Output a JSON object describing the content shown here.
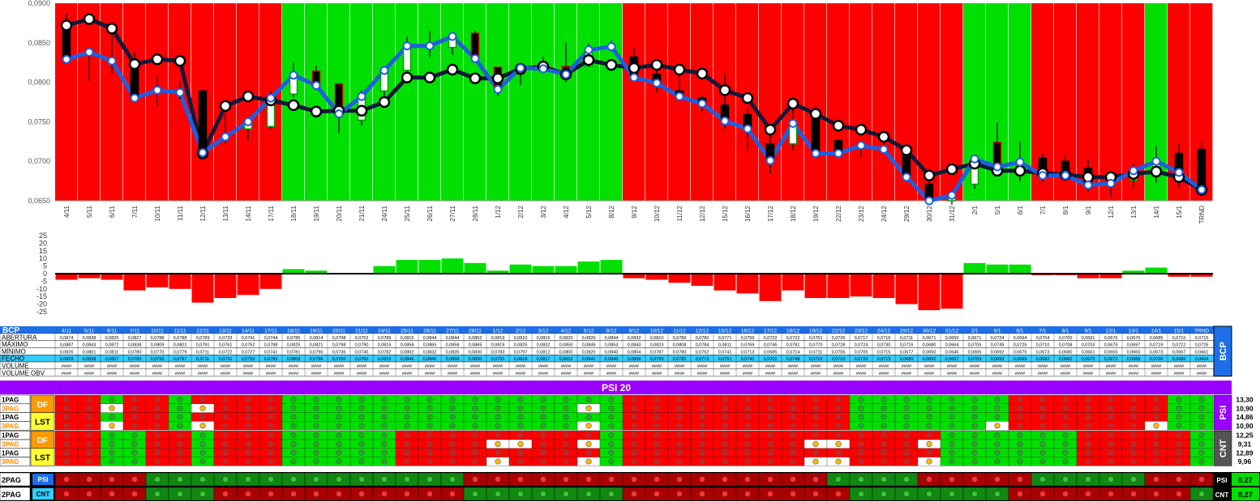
{
  "chart_data": [
    {
      "type": "candlestick",
      "title": "",
      "ylim": [
        0.065,
        0.09
      ],
      "y_ticks": [
        "0,0650",
        "0,0700",
        "0,0750",
        "0,0800",
        "0,0850",
        "0,0900"
      ],
      "categories": [
        "4/11",
        "5/11",
        "6/11",
        "7/11",
        "10/11",
        "11/11",
        "12/11",
        "13/11",
        "14/11",
        "17/11",
        "18/11",
        "19/11",
        "20/11",
        "21/11",
        "24/11",
        "25/11",
        "26/11",
        "27/11",
        "28/11",
        "1/12",
        "2/12",
        "3/12",
        "4/12",
        "5/12",
        "8/12",
        "9/12",
        "10/12",
        "11/12",
        "12/12",
        "15/12",
        "16/12",
        "17/12",
        "18/12",
        "19/12",
        "22/12",
        "23/12",
        "24/12",
        "29/12",
        "30/12",
        "31/12",
        "2/1",
        "5/1",
        "6/1",
        "7/1",
        "8/1",
        "9/1",
        "12/1",
        "13/1",
        "14/1",
        "15/1",
        "TRND"
      ],
      "background": [
        "R",
        "R",
        "R",
        "R",
        "R",
        "R",
        "R",
        "R",
        "R",
        "R",
        "G",
        "G",
        "G",
        "G",
        "G",
        "G",
        "G",
        "G",
        "G",
        "G",
        "G",
        "G",
        "G",
        "G",
        "G",
        "R",
        "R",
        "R",
        "R",
        "R",
        "R",
        "R",
        "R",
        "R",
        "R",
        "R",
        "R",
        "R",
        "R",
        "R",
        "G",
        "G",
        "G",
        "R",
        "R",
        "R",
        "R",
        "R",
        "G",
        "R",
        "R"
      ],
      "open": [
        0.0874,
        0.0838,
        0.0825,
        0.0827,
        0.0788,
        0.0788,
        0.0789,
        0.0733,
        0.0741,
        0.0744,
        0.0785,
        0.0814,
        0.0798,
        0.0752,
        0.0789,
        0.0815,
        0.0844,
        0.0844,
        0.0862,
        0.0819,
        0.081,
        0.0815,
        0.082,
        0.082,
        0.0844,
        0.0832,
        0.081,
        0.0789,
        0.078,
        0.0771,
        0.0759,
        0.0722,
        0.0722,
        0.0761,
        0.0726,
        0.0717,
        0.0716,
        0.0711,
        0.0671,
        0.065,
        0.0671,
        0.0724,
        0.0694,
        0.0704,
        0.07,
        0.0691,
        0.0676,
        0.0676,
        0.0685,
        0.071,
        0.0715
      ],
      "high": [
        0.0887,
        0.0843,
        0.0872,
        0.0838,
        0.0809,
        0.0801,
        0.0791,
        0.0761,
        0.0752,
        0.0788,
        0.0825,
        0.0821,
        0.0798,
        0.079,
        0.0815,
        0.0858,
        0.0865,
        0.0858,
        0.0865,
        0.0819,
        0.0825,
        0.0832,
        0.085,
        0.0849,
        0.0853,
        0.0843,
        0.0823,
        0.0808,
        0.0784,
        0.0811,
        0.0769,
        0.0746,
        0.0781,
        0.077,
        0.0728,
        0.0724,
        0.073,
        0.0716,
        0.068,
        0.0664,
        0.0705,
        0.0749,
        0.0725,
        0.071,
        0.0708,
        0.0703,
        0.0679,
        0.0697,
        0.0719,
        0.0722,
        0.0725
      ],
      "low": [
        0.0826,
        0.0801,
        0.0811,
        0.078,
        0.077,
        0.0779,
        0.0711,
        0.0722,
        0.0727,
        0.0741,
        0.0781,
        0.079,
        0.0736,
        0.0745,
        0.0782,
        0.0802,
        0.0832,
        0.0835,
        0.083,
        0.0783,
        0.0797,
        0.0812,
        0.08,
        0.082,
        0.084,
        0.0804,
        0.0787,
        0.078,
        0.0762,
        0.0741,
        0.0713,
        0.0685,
        0.0714,
        0.0711,
        0.0706,
        0.0705,
        0.0715,
        0.0677,
        0.065,
        0.0645,
        0.0665,
        0.0692,
        0.0675,
        0.0673,
        0.068,
        0.0661,
        0.0655,
        0.0665,
        0.0673,
        0.0667,
        0.0661
      ],
      "close": [
        0.0829,
        0.0838,
        0.0827,
        0.078,
        0.079,
        0.0787,
        0.0711,
        0.0731,
        0.075,
        0.078,
        0.0809,
        0.0796,
        0.076,
        0.0782,
        0.0815,
        0.0846,
        0.0846,
        0.0858,
        0.083,
        0.0791,
        0.0818,
        0.0817,
        0.081,
        0.0841,
        0.0845,
        0.0806,
        0.0799,
        0.0782,
        0.0773,
        0.0751,
        0.0741,
        0.0701,
        0.0748,
        0.071,
        0.071,
        0.072,
        0.0715,
        0.068,
        0.065,
        0.0657,
        0.0703,
        0.0693,
        0.0699,
        0.0682,
        0.0682,
        0.067,
        0.0672,
        0.0688,
        0.07,
        0.0686,
        0.0664
      ],
      "ma": [
        0.0872,
        0.088,
        0.0868,
        0.0823,
        0.0829,
        0.0827,
        0.071,
        0.077,
        0.0782,
        0.0777,
        0.0771,
        0.0763,
        0.0764,
        0.0764,
        0.0775,
        0.0806,
        0.0806,
        0.0816,
        0.0805,
        0.0805,
        0.0817,
        0.082,
        0.081,
        0.0828,
        0.0822,
        0.0818,
        0.0822,
        0.0816,
        0.0811,
        0.079,
        0.078,
        0.074,
        0.0773,
        0.076,
        0.0745,
        0.074,
        0.0731,
        0.0714,
        0.0682,
        0.069,
        0.0697,
        0.0688,
        0.0688,
        0.0685,
        0.0683,
        0.068,
        0.068,
        0.0684,
        0.0687,
        0.068,
        0.0664
      ]
    },
    {
      "type": "bar",
      "title": "",
      "ylim": [
        -25,
        25
      ],
      "y_ticks": [
        25,
        20,
        15,
        10,
        5,
        0,
        -5,
        -10,
        -15,
        -20,
        -25
      ],
      "categories": [
        "4/11",
        "5/11",
        "6/11",
        "7/11",
        "10/11",
        "11/11",
        "12/11",
        "13/11",
        "14/11",
        "17/11",
        "18/11",
        "19/11",
        "20/11",
        "21/11",
        "24/11",
        "25/11",
        "26/11",
        "27/11",
        "28/11",
        "1/12",
        "2/12",
        "3/12",
        "4/12",
        "5/12",
        "8/12",
        "9/12",
        "10/12",
        "11/12",
        "12/12",
        "15/12",
        "16/12",
        "17/12",
        "18/12",
        "19/12",
        "22/12",
        "23/12",
        "24/12",
        "29/12",
        "30/12",
        "31/12",
        "2/1",
        "5/1",
        "6/1",
        "7/1",
        "8/1",
        "9/1",
        "12/1",
        "13/1",
        "14/1",
        "15/1",
        "TRND"
      ],
      "values": [
        -4,
        -3,
        -4,
        -11,
        -9,
        -10,
        -19,
        -16,
        -14,
        -10,
        3,
        2,
        0,
        0,
        5,
        9,
        9,
        10,
        7,
        2,
        6,
        5,
        5,
        8,
        9,
        -3,
        -4,
        -6,
        -8,
        -11,
        -13,
        -18,
        -11,
        -16,
        -16,
        -15,
        -16,
        -20,
        -24,
        -23,
        7,
        6,
        6,
        -1,
        -1,
        -3,
        -3,
        2,
        4,
        -2,
        -2
      ]
    }
  ],
  "table": {
    "symbol": "BCP",
    "row_labels": [
      "ABERTURA",
      "MÁXIMO",
      "MÍNIMO",
      "FECHO",
      "VOLUME",
      "VOLUME OBV"
    ],
    "fill_text": "####",
    "side_label": "BCP"
  },
  "signals": {
    "banner": "PSI 20",
    "row_labels": [
      "1PAG",
      "3PAG",
      "1PAG",
      "3PAG",
      "1PAG",
      "3PAG",
      "1PAG",
      "3PAG"
    ],
    "group_labels": [
      "DF",
      "LST",
      "DF",
      "LST"
    ],
    "side_labels": [
      "PSI",
      "CNT"
    ],
    "values": [
      "13,30",
      "10,90",
      "14,86",
      "10,90",
      "12,25",
      "9,31",
      "12,89",
      "9,96"
    ],
    "rows": [
      "RRGRRGRRRRGGGGGGGGGGGGGGGRRRRRRRRRRGGGGGGGRRRRRRRGGG",
      "RRYRRGYRRRGGGGGGGGGGGGGYGRRRRRRRRRRGGGGGGGRRRRRRRGGG",
      "RRGRRGRRRRGGGGGGGGGGGGGGGRRRRRRRRRRGGGGGGGRRRRRRRGGG",
      "RRYRRGYRRRGGGGGGGGGGGGGYGRRRRRRRRRRGGGGGGYRRRRRRYGGG",
      "RRGGRRGRRRGGGGGRRRRRRRRRGRRRRRRRRRRRRRRGGGGGGRRRRRGGG",
      "RRGGRRGRRRGGGGGRRRRYYRRYGRRRRRRRRYYRRRYGGGGGGRRRRRGGG",
      "RRGGRRGRRRGGGGGRRRRRRRRRGRRRRRRRRRRRRRRGGGGGGRRRRRGGG",
      "RRGGRRGRRRGGGGGRRRRYRRRYGRRRRRRRRYYRRRYGGGGGGRRRRRGGG"
    ],
    "pag2": [
      {
        "label": "2PAG",
        "tag": "PSI",
        "value": "8,27",
        "row": "RRRRGGGGGGGGGGGGGGRRRRRRRRRRRRRRRRGGGGRRRRRGGGGGRRRRRGGGG"
      },
      {
        "label": "2PAG",
        "tag": "CNT",
        "value": "8,27",
        "row": "RRRRGGGRRRRRRRRRRRGGGGGGGRRRRRRRRRRGGGGGGGRRRRRRRRGGGG"
      }
    ]
  },
  "colors": {
    "up_bg": "#00e000",
    "down_bg": "#ff0000",
    "ma_line": "#111a3a",
    "close_line": "#1f5fe0",
    "purple": "#9900ff"
  }
}
